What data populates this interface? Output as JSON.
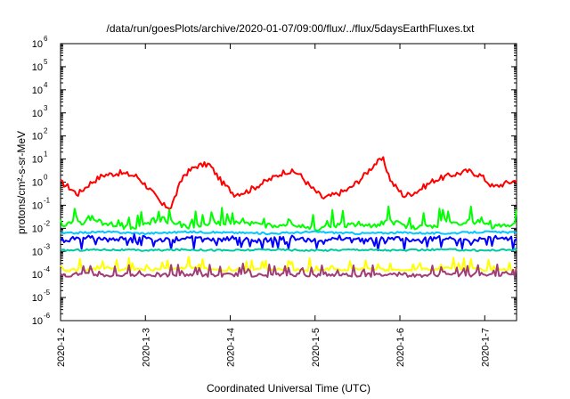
{
  "chart_data": {
    "type": "line",
    "title": "/data/run/goesPlots/archive/2020-01-07/09:00/flux/../flux/5daysEarthFluxes.txt",
    "xlabel": "Coordinated Universal Time (UTC)",
    "ylabel": "protons/cm²-s-sr-MeV",
    "yscale": "log",
    "ylim": [
      1e-06,
      1000000.0
    ],
    "xlim": [
      "2020-1-2",
      "2020-1-7 09:00"
    ],
    "x_ticks": [
      "2020-1-2",
      "2020-1-3",
      "2020-1-4",
      "2020-1-5",
      "2020-1-6",
      "2020-1-7"
    ],
    "y_ticks": [
      {
        "base": "10",
        "exp": "-6"
      },
      {
        "base": "10",
        "exp": "-5"
      },
      {
        "base": "10",
        "exp": "-4"
      },
      {
        "base": "10",
        "exp": "-3"
      },
      {
        "base": "10",
        "exp": "-2"
      },
      {
        "base": "10",
        "exp": "-1"
      },
      {
        "base": "10",
        "exp": "0"
      },
      {
        "base": "10",
        "exp": "1"
      },
      {
        "base": "10",
        "exp": "2"
      },
      {
        "base": "10",
        "exp": "3"
      },
      {
        "base": "10",
        "exp": "4"
      },
      {
        "base": "10",
        "exp": "5"
      },
      {
        "base": "10",
        "exp": "6"
      }
    ],
    "grid": false,
    "series": [
      {
        "color": "#ff0000",
        "x": [
          2.0,
          2.1,
          2.2,
          2.35,
          2.5,
          2.7,
          2.9,
          3.05,
          3.2,
          3.3,
          3.45,
          3.6,
          3.75,
          3.9,
          4.05,
          4.2,
          4.35,
          4.5,
          4.65,
          4.8,
          4.95,
          5.1,
          5.25,
          5.4,
          5.55,
          5.7,
          5.8,
          5.9,
          6.05,
          6.2,
          6.4,
          6.6,
          6.8,
          6.95,
          7.1,
          7.25,
          7.375
        ],
        "y": [
          1.0,
          0.6,
          0.3,
          0.9,
          2.0,
          2.5,
          1.8,
          0.5,
          0.1,
          0.08,
          2.0,
          5.0,
          6.0,
          1.0,
          0.3,
          0.4,
          0.8,
          1.5,
          3.0,
          2.5,
          0.6,
          0.2,
          0.3,
          0.5,
          1.5,
          6.0,
          10.0,
          1.0,
          0.25,
          0.4,
          1.2,
          2.0,
          3.0,
          2.0,
          0.6,
          0.9,
          1.2
        ]
      },
      {
        "color": "#00ff00",
        "x": [
          2.0,
          2.3,
          2.6,
          2.9,
          3.2,
          3.5,
          3.8,
          4.1,
          4.4,
          4.7,
          5.0,
          5.3,
          5.6,
          5.9,
          6.2,
          6.5,
          6.8,
          7.1,
          7.375
        ],
        "y": [
          0.012,
          0.02,
          0.015,
          0.01,
          0.025,
          0.012,
          0.015,
          0.02,
          0.012,
          0.018,
          0.01,
          0.015,
          0.012,
          0.02,
          0.01,
          0.015,
          0.02,
          0.012,
          0.015
        ]
      },
      {
        "color": "#00c8ff",
        "x": [
          2.0,
          2.5,
          3.0,
          3.5,
          4.0,
          4.5,
          5.0,
          5.5,
          6.0,
          6.5,
          7.0,
          7.375
        ],
        "y": [
          0.006,
          0.007,
          0.006,
          0.007,
          0.0065,
          0.006,
          0.007,
          0.006,
          0.0065,
          0.006,
          0.007,
          0.0065
        ]
      },
      {
        "color": "#0000ff",
        "x": [
          2.0,
          2.3,
          2.6,
          2.9,
          3.2,
          3.5,
          3.8,
          4.1,
          4.4,
          4.7,
          5.0,
          5.3,
          5.6,
          5.9,
          6.2,
          6.5,
          6.8,
          7.1,
          7.375
        ],
        "y": [
          0.003,
          0.004,
          0.003,
          0.005,
          0.003,
          0.004,
          0.003,
          0.004,
          0.003,
          0.004,
          0.003,
          0.004,
          0.003,
          0.004,
          0.003,
          0.004,
          0.003,
          0.004,
          0.0035
        ]
      },
      {
        "color": "#00c8a0",
        "x": [
          2.0,
          2.5,
          3.0,
          3.5,
          4.0,
          4.5,
          5.0,
          5.5,
          6.0,
          6.5,
          7.0,
          7.375
        ],
        "y": [
          0.0011,
          0.0012,
          0.0011,
          0.0012,
          0.0011,
          0.0012,
          0.0011,
          0.0012,
          0.0011,
          0.0012,
          0.0011,
          0.0012
        ]
      },
      {
        "color": "#ffff00",
        "x": [
          2.0,
          2.5,
          3.0,
          3.5,
          4.0,
          4.5,
          5.0,
          5.5,
          6.0,
          6.5,
          7.0,
          7.375
        ],
        "y": [
          0.00015,
          0.00018,
          0.00016,
          0.0002,
          0.00015,
          0.00018,
          0.00016,
          0.00017,
          0.00015,
          0.00018,
          0.00016,
          0.00015
        ]
      },
      {
        "color": "#a03c78",
        "x": [
          2.0,
          2.3,
          2.6,
          2.9,
          3.2,
          3.5,
          3.8,
          4.1,
          4.4,
          4.7,
          5.0,
          5.3,
          5.6,
          5.9,
          6.2,
          6.5,
          6.8,
          7.1,
          7.375
        ],
        "y": [
          9e-05,
          0.0001,
          9e-05,
          0.0001,
          9e-05,
          0.0001,
          9e-05,
          0.0001,
          9e-05,
          0.0001,
          9e-05,
          0.0001,
          9e-05,
          0.0001,
          9e-05,
          0.0001,
          9e-05,
          0.0001,
          9e-05
        ]
      }
    ]
  }
}
